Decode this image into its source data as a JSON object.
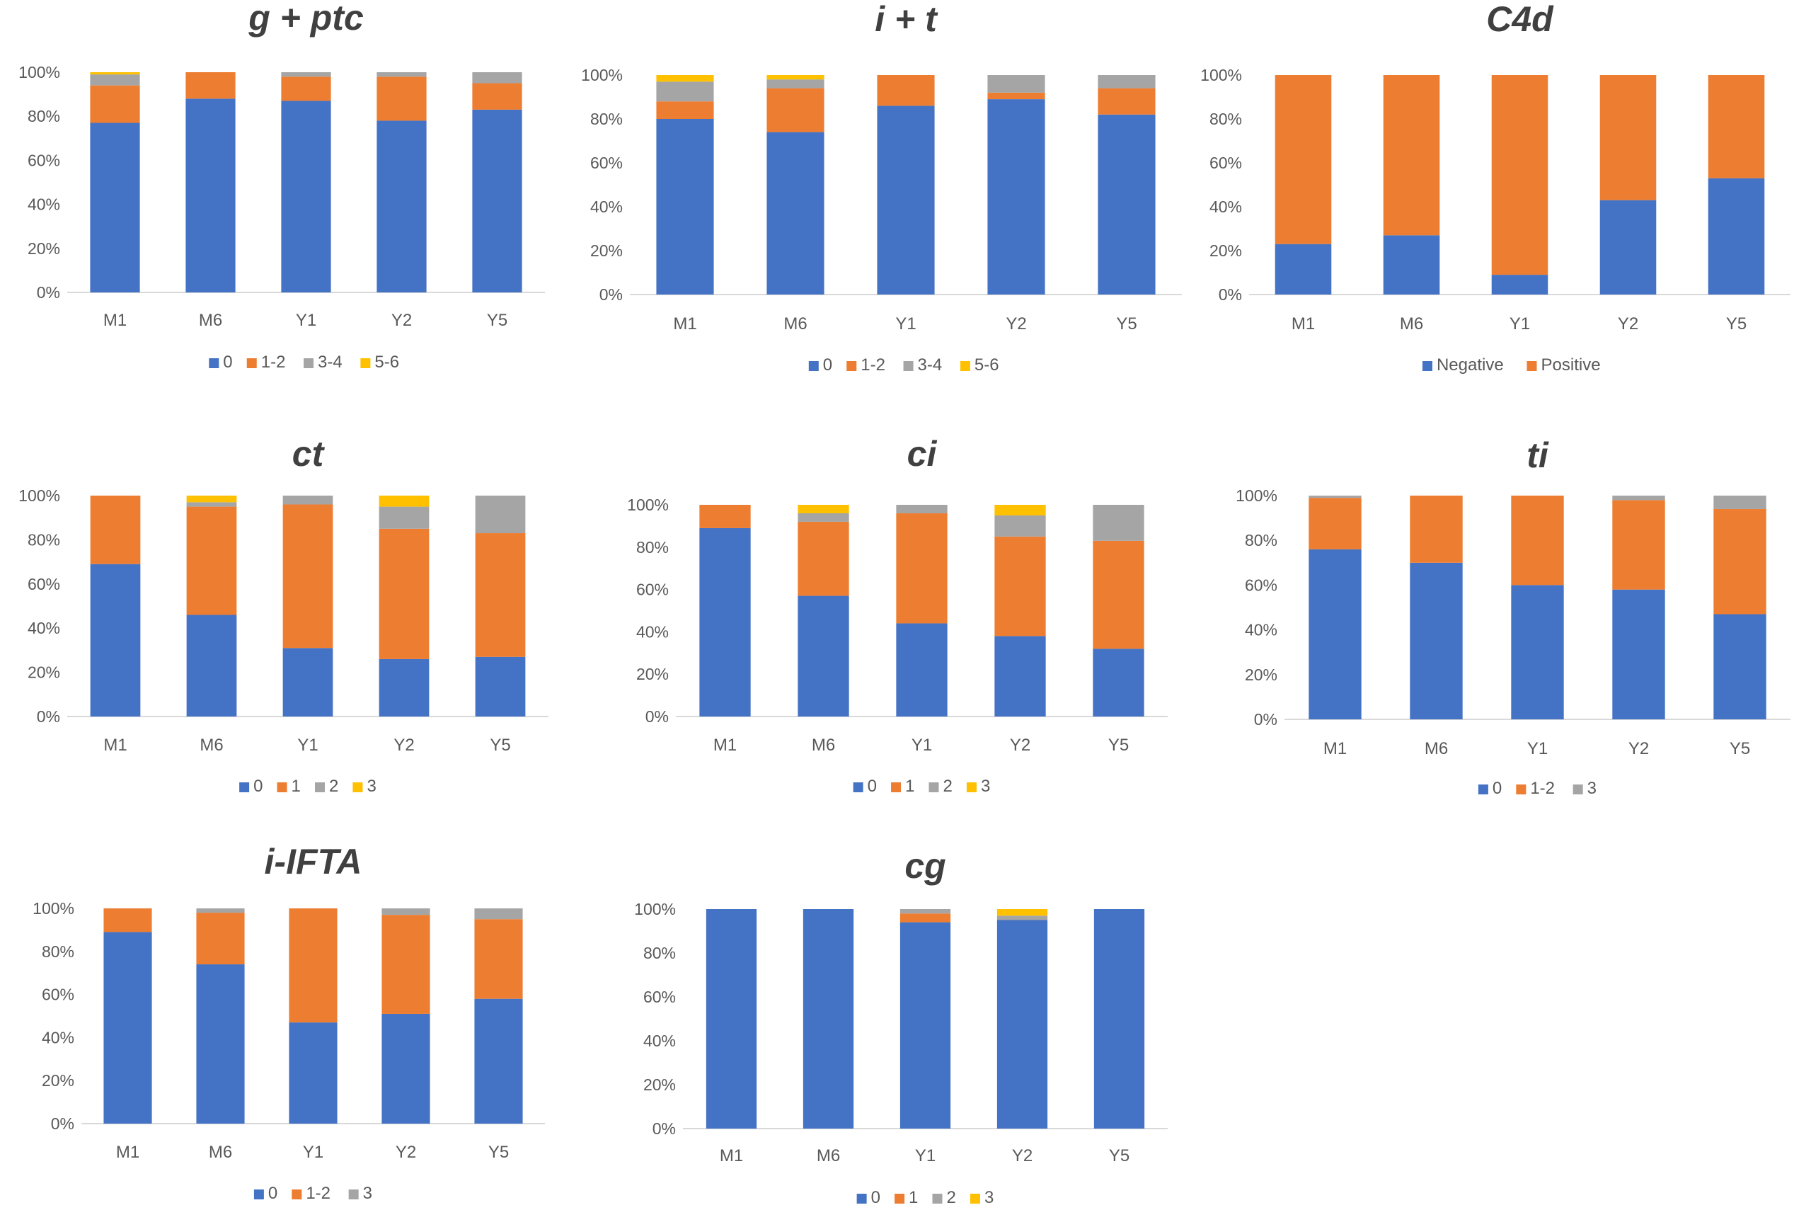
{
  "colors": {
    "blue": "#4472C4",
    "orange": "#ED7D31",
    "gray": "#A5A5A5",
    "yellow": "#FFC000",
    "axis": "#D9D9D9",
    "text": "#595959",
    "title": "#404040"
  },
  "chart_data": [
    {
      "type": "bar",
      "stacked": true,
      "title": "g + ptc",
      "categories": [
        "M1",
        "M6",
        "Y1",
        "Y2",
        "Y5"
      ],
      "yticks": [
        "0%",
        "20%",
        "40%",
        "60%",
        "80%",
        "100%"
      ],
      "ylim": [
        0,
        100
      ],
      "legend_position": "bottom",
      "series": [
        {
          "name": "0",
          "color": "#4472C4",
          "values": [
            77,
            88,
            87,
            78,
            83
          ]
        },
        {
          "name": "1-2",
          "color": "#ED7D31",
          "values": [
            17,
            12,
            11,
            20,
            12
          ]
        },
        {
          "name": "3-4",
          "color": "#A5A5A5",
          "values": [
            5,
            0,
            2,
            2,
            5
          ]
        },
        {
          "name": "5-6",
          "color": "#FFC000",
          "values": [
            1,
            0,
            0,
            0,
            0
          ]
        }
      ]
    },
    {
      "type": "bar",
      "stacked": true,
      "title": "i + t",
      "categories": [
        "M1",
        "M6",
        "Y1",
        "Y2",
        "Y5"
      ],
      "yticks": [
        "0%",
        "20%",
        "40%",
        "60%",
        "80%",
        "100%"
      ],
      "ylim": [
        0,
        100
      ],
      "legend_position": "bottom",
      "series": [
        {
          "name": "0",
          "color": "#4472C4",
          "values": [
            80,
            74,
            86,
            89,
            82
          ]
        },
        {
          "name": "1-2",
          "color": "#ED7D31",
          "values": [
            8,
            20,
            14,
            3,
            12
          ]
        },
        {
          "name": "3-4",
          "color": "#A5A5A5",
          "values": [
            9,
            4,
            0,
            8,
            6
          ]
        },
        {
          "name": "5-6",
          "color": "#FFC000",
          "values": [
            3,
            2,
            0,
            0,
            0
          ]
        }
      ]
    },
    {
      "type": "bar",
      "stacked": true,
      "title": "C4d",
      "categories": [
        "M1",
        "M6",
        "Y1",
        "Y2",
        "Y5"
      ],
      "yticks": [
        "0%",
        "20%",
        "40%",
        "60%",
        "80%",
        "100%"
      ],
      "ylim": [
        0,
        100
      ],
      "legend_position": "bottom",
      "series": [
        {
          "name": "Negative",
          "color": "#4472C4",
          "values": [
            23,
            27,
            9,
            43,
            53
          ]
        },
        {
          "name": "Positive",
          "color": "#ED7D31",
          "values": [
            77,
            73,
            91,
            57,
            47
          ]
        }
      ]
    },
    {
      "type": "bar",
      "stacked": true,
      "title": "ct",
      "categories": [
        "M1",
        "M6",
        "Y1",
        "Y2",
        "Y5"
      ],
      "yticks": [
        "0%",
        "20%",
        "40%",
        "60%",
        "80%",
        "100%"
      ],
      "ylim": [
        0,
        100
      ],
      "legend_position": "bottom",
      "series": [
        {
          "name": "0",
          "color": "#4472C4",
          "values": [
            69,
            46,
            31,
            26,
            27
          ]
        },
        {
          "name": "1",
          "color": "#ED7D31",
          "values": [
            31,
            49,
            65,
            59,
            56
          ]
        },
        {
          "name": "2",
          "color": "#A5A5A5",
          "values": [
            0,
            2,
            4,
            10,
            17
          ]
        },
        {
          "name": "3",
          "color": "#FFC000",
          "values": [
            0,
            3,
            0,
            5,
            0
          ]
        }
      ]
    },
    {
      "type": "bar",
      "stacked": true,
      "title": "ci",
      "categories": [
        "M1",
        "M6",
        "Y1",
        "Y2",
        "Y5"
      ],
      "yticks": [
        "0%",
        "20%",
        "40%",
        "60%",
        "80%",
        "100%"
      ],
      "ylim": [
        0,
        100
      ],
      "legend_position": "bottom",
      "series": [
        {
          "name": "0",
          "color": "#4472C4",
          "values": [
            89,
            57,
            44,
            38,
            32
          ]
        },
        {
          "name": "1",
          "color": "#ED7D31",
          "values": [
            11,
            35,
            52,
            47,
            51
          ]
        },
        {
          "name": "2",
          "color": "#A5A5A5",
          "values": [
            0,
            4,
            4,
            10,
            17
          ]
        },
        {
          "name": "3",
          "color": "#FFC000",
          "values": [
            0,
            4,
            0,
            5,
            0
          ]
        }
      ]
    },
    {
      "type": "bar",
      "stacked": true,
      "title": "ti",
      "categories": [
        "M1",
        "M6",
        "Y1",
        "Y2",
        "Y5"
      ],
      "yticks": [
        "0%",
        "20%",
        "40%",
        "60%",
        "80%",
        "100%"
      ],
      "ylim": [
        0,
        100
      ],
      "legend_position": "bottom",
      "series": [
        {
          "name": "0",
          "color": "#4472C4",
          "values": [
            76,
            70,
            60,
            58,
            47
          ]
        },
        {
          "name": "1-2",
          "color": "#ED7D31",
          "values": [
            23,
            30,
            40,
            40,
            47
          ]
        },
        {
          "name": "3",
          "color": "#A5A5A5",
          "values": [
            1,
            0,
            0,
            2,
            6
          ]
        }
      ]
    },
    {
      "type": "bar",
      "stacked": true,
      "title": "i-IFTA",
      "categories": [
        "M1",
        "M6",
        "Y1",
        "Y2",
        "Y5"
      ],
      "yticks": [
        "0%",
        "20%",
        "40%",
        "60%",
        "80%",
        "100%"
      ],
      "ylim": [
        0,
        100
      ],
      "legend_position": "bottom",
      "series": [
        {
          "name": "0",
          "color": "#4472C4",
          "values": [
            89,
            74,
            47,
            51,
            58
          ]
        },
        {
          "name": "1-2",
          "color": "#ED7D31",
          "values": [
            11,
            24,
            53,
            46,
            37
          ]
        },
        {
          "name": "3",
          "color": "#A5A5A5",
          "values": [
            0,
            2,
            0,
            3,
            5
          ]
        }
      ]
    },
    {
      "type": "bar",
      "stacked": true,
      "title": "cg",
      "categories": [
        "M1",
        "M6",
        "Y1",
        "Y2",
        "Y5"
      ],
      "yticks": [
        "0%",
        "20%",
        "40%",
        "60%",
        "80%",
        "100%"
      ],
      "ylim": [
        0,
        100
      ],
      "legend_position": "bottom",
      "series": [
        {
          "name": "0",
          "color": "#4472C4",
          "values": [
            100,
            100,
            94,
            95,
            100
          ]
        },
        {
          "name": "1",
          "color": "#ED7D31",
          "values": [
            0,
            0,
            4,
            0,
            0
          ]
        },
        {
          "name": "2",
          "color": "#A5A5A5",
          "values": [
            0,
            0,
            2,
            2,
            0
          ]
        },
        {
          "name": "3",
          "color": "#FFC000",
          "values": [
            0,
            0,
            0,
            3,
            0
          ]
        }
      ]
    }
  ]
}
